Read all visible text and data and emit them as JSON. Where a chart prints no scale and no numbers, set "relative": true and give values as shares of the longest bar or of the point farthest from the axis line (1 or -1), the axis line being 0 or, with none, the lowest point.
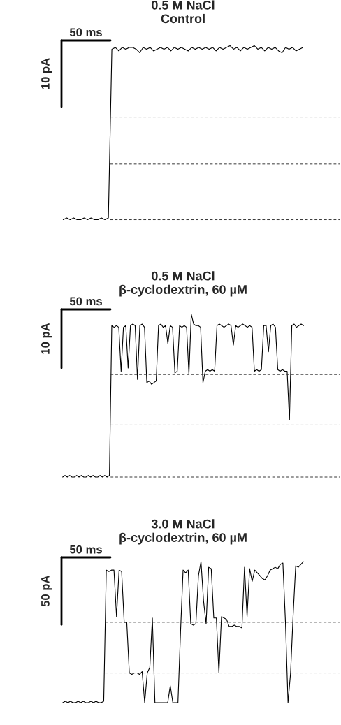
{
  "chart_data": [
    {
      "type": "line",
      "title": "0.5 M NaCl\nControl",
      "relative": true,
      "annotations": [
        "50 ms",
        "10 pA"
      ],
      "categories": [
        null,
        null,
        null,
        null,
        null,
        null,
        null,
        null,
        null,
        null,
        null,
        null,
        null,
        null,
        null,
        null,
        null,
        null,
        null,
        null,
        null,
        null,
        null,
        null,
        null,
        null,
        null,
        null,
        null,
        null,
        null,
        null,
        null,
        null,
        null,
        null,
        null,
        null,
        null,
        null,
        null,
        null,
        null,
        null,
        null,
        null,
        null,
        null,
        null,
        null,
        null,
        null,
        null,
        null,
        null,
        null,
        null,
        null,
        null,
        null,
        null,
        null,
        null,
        null,
        null,
        null,
        null,
        null,
        null,
        null
      ],
      "series": [
        {
          "color": "#000000",
          "values": [
            0,
            0.01,
            0,
            0.01,
            0,
            0,
            0.01,
            0,
            0.01,
            0,
            0,
            0.01,
            0,
            0.01,
            0.98,
            0.99,
            0.97,
            0.99,
            0.98,
            0.99,
            0.99,
            0.98,
            0.96,
            0.99,
            0.98,
            0.99,
            0.97,
            0.98,
            0.99,
            0.98,
            0.99,
            0.97,
            0.99,
            0.98,
            0.99,
            0.98,
            0.97,
            0.99,
            0.98,
            0.99,
            0.98,
            0.99,
            0.98,
            0.99,
            0.97,
            0.99,
            0.98,
            0.99,
            1,
            0.98,
            0.99,
            0.97,
            0.99,
            0.98,
            0.99,
            1,
            0.98,
            0.99,
            0.97,
            0.99,
            0.98,
            0.99,
            0.97,
            0.96,
            0.99,
            0.98,
            0.99,
            0.97,
            0.98,
            0.99
          ]
        }
      ],
      "ref_lines": [
        {
          "axis": "y",
          "value": 0,
          "color": "#333333",
          "line_style": "dashed"
        },
        {
          "axis": "y",
          "value": 0.32,
          "color": "#333333",
          "line_style": "dashed"
        },
        {
          "axis": "y",
          "value": 0.59,
          "color": "#333333",
          "line_style": "dashed"
        }
      ]
    },
    {
      "type": "line",
      "title": "0.5 M NaCl\nβ-cyclodextrin, 60 µM",
      "relative": true,
      "annotations": [
        "50 ms",
        "10 pA"
      ],
      "categories": [
        null,
        null,
        null,
        null,
        null,
        null,
        null,
        null,
        null,
        null,
        null,
        null,
        null,
        null,
        null,
        null,
        null,
        null,
        null,
        null,
        null,
        null,
        null,
        null,
        null,
        null,
        null,
        null,
        null,
        null,
        null,
        null,
        null,
        null,
        null,
        null,
        null,
        null,
        null,
        null,
        null,
        null,
        null,
        null,
        null,
        null,
        null,
        null,
        null,
        null,
        null,
        null,
        null,
        null,
        null,
        null,
        null,
        null,
        null,
        null,
        null,
        null,
        null,
        null,
        null,
        null,
        null,
        null,
        null,
        null,
        null,
        null,
        null,
        null,
        null,
        null,
        null,
        null,
        null,
        null,
        null,
        null,
        null,
        null,
        null,
        null,
        null,
        null,
        null,
        null,
        null,
        null,
        null,
        null,
        null,
        null,
        null,
        null,
        null,
        null,
        null,
        null,
        null,
        null
      ],
      "series": [
        {
          "color": "#000000",
          "values": [
            0,
            0.01,
            0,
            0.01,
            0,
            0,
            0.01,
            0,
            0.01,
            0,
            0,
            0.01,
            0,
            0.01,
            0,
            0,
            0.01,
            0,
            0.01,
            0,
            0.01,
            0.93,
            0.92,
            0.93,
            0.92,
            0.65,
            0.92,
            0.93,
            0.67,
            0.93,
            0.94,
            0.93,
            0.6,
            0.93,
            0.94,
            0.92,
            0.58,
            0.59,
            0.57,
            0.58,
            0.59,
            0.93,
            0.94,
            0.92,
            0.93,
            0.82,
            0.93,
            0.92,
            0.64,
            0.65,
            0.93,
            0.92,
            0.93,
            0.92,
            0.63,
            1,
            0.94,
            0.93,
            0.93,
            0.92,
            0.58,
            0.65,
            0.66,
            0.65,
            0.66,
            0.65,
            0.93,
            0.94,
            0.93,
            0.92,
            0.93,
            0.94,
            0.93,
            0.81,
            0.93,
            0.92,
            0.93,
            0.94,
            0.93,
            0.92,
            0.93,
            0.92,
            0.65,
            0.66,
            0.65,
            0.66,
            0.93,
            0.93,
            0.77,
            0.93,
            0.94,
            0.92,
            0.66,
            0.65,
            0.66,
            0.65,
            0.65,
            0.35,
            0.93,
            0.94,
            0.92,
            0.93,
            0.94,
            0.93
          ]
        }
      ],
      "ref_lines": [
        {
          "axis": "y",
          "value": 0,
          "color": "#333333",
          "line_style": "dashed"
        },
        {
          "axis": "y",
          "value": 0.32,
          "color": "#333333",
          "line_style": "dashed"
        },
        {
          "axis": "y",
          "value": 0.63,
          "color": "#333333",
          "line_style": "dashed"
        }
      ]
    },
    {
      "type": "line",
      "title": "3.0 M NaCl\nβ-cyclodextrin, 60 µM",
      "relative": true,
      "annotations": [
        "50 ms",
        "50 pA"
      ],
      "categories": [
        null,
        null,
        null,
        null,
        null,
        null,
        null,
        null,
        null,
        null,
        null,
        null,
        null,
        null,
        null,
        null,
        null,
        null,
        null,
        null,
        null,
        null,
        null,
        null,
        null,
        null,
        null,
        null,
        null,
        null,
        null,
        null,
        null,
        null,
        null,
        null,
        null,
        null,
        null,
        null,
        null,
        null,
        null,
        null,
        null,
        null,
        null,
        null,
        null,
        null,
        null,
        null,
        null,
        null,
        null,
        null,
        null,
        null,
        null,
        null,
        null,
        null,
        null,
        null,
        null,
        null,
        null,
        null,
        null,
        null,
        null,
        null,
        null,
        null,
        null,
        null,
        null,
        null,
        null,
        null,
        null,
        null,
        null,
        null,
        null,
        null,
        null,
        null,
        null,
        null,
        null,
        null,
        null,
        null,
        null
      ],
      "series": [
        {
          "color": "#000000",
          "values": [
            0,
            0.01,
            0,
            0.01,
            0,
            0,
            0.01,
            0,
            0.01,
            0,
            0,
            0.01,
            0,
            0.01,
            0,
            0,
            0.01,
            0.94,
            0.93,
            0.94,
            0.94,
            0.61,
            0.94,
            0.93,
            0.57,
            0.57,
            0.21,
            0.2,
            0.21,
            0.21,
            0.2,
            0.22,
            0,
            0.21,
            0.25,
            0.6,
            0,
            0,
            0,
            0,
            0,
            0,
            0.12,
            0,
            0,
            0,
            0.5,
            0.94,
            0.92,
            0.94,
            0.56,
            0.55,
            0.56,
            0.9,
            1,
            0.72,
            0.56,
            0.96,
            0.95,
            0.6,
            0.6,
            0.21,
            0.61,
            0.6,
            0.59,
            0.54,
            0.54,
            0.55,
            0.54,
            0.54,
            0.53,
            0.96,
            0.61,
            0.95,
            0.86,
            0.94,
            0.92,
            0.9,
            0.88,
            0.87,
            0.9,
            0.94,
            0.95,
            0.96,
            0.95,
            0.98,
            0.99,
            0.57,
            0,
            0.21,
            0.62,
            0.97,
            0.96,
            0.98,
            1
          ]
        }
      ],
      "ref_lines": [
        {
          "axis": "y",
          "value": 0.57,
          "color": "#333333",
          "line_style": "dashed"
        },
        {
          "axis": "y",
          "value": 0.21,
          "color": "#333333",
          "line_style": "dashed"
        }
      ]
    }
  ]
}
